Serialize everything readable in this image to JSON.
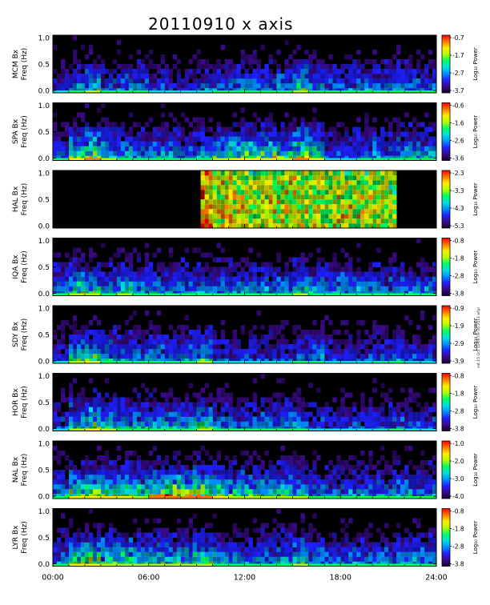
{
  "title": "20110910 x axis",
  "stamp": "sat 15 Oct 11 06:09:26 2011 wfpl",
  "colorbar_label": "Log₁₀ Power",
  "colors": {
    "background": "#000000",
    "frame": "#ffffff",
    "colormap": [
      "#1a0033",
      "#3a0a8a",
      "#2020ff",
      "#0090ff",
      "#00e0e0",
      "#00ff60",
      "#b0ff00",
      "#ffee00",
      "#ff7700",
      "#ff0000"
    ]
  },
  "chart_data": [
    {
      "type": "heatmap",
      "station": "MCM",
      "ylabel": [
        "MCM Bx",
        "Freq (Hz)"
      ],
      "yticks": [
        "1.0",
        "0.5",
        "0.0"
      ],
      "ylim": [
        0,
        1.0
      ],
      "colorbar": {
        "ticks": [
          "-0.7",
          "-1.7",
          "-2.7",
          "-3.7"
        ],
        "range": [
          -3.7,
          -0.7
        ]
      },
      "activity": [
        0.15,
        0.3,
        0.4,
        0.25,
        0.25,
        0.3,
        0.2,
        0.15,
        0.15,
        0.2,
        0.25,
        0.3,
        0.3,
        0.3,
        0.35,
        0.45,
        0.3,
        0.25,
        0.25,
        0.3,
        0.3,
        0.3,
        0.3,
        0.25
      ]
    },
    {
      "type": "heatmap",
      "station": "SPA",
      "ylabel": [
        "SPA Bx",
        "Freq (Hz)"
      ],
      "yticks": [
        "1.0",
        "0.5",
        "0.0"
      ],
      "ylim": [
        0,
        1.0
      ],
      "colorbar": {
        "ticks": [
          "-0.6",
          "-1.6",
          "-2.6",
          "-3.6"
        ],
        "range": [
          -3.6,
          -0.6
        ]
      },
      "activity": [
        0.25,
        0.5,
        0.6,
        0.4,
        0.35,
        0.3,
        0.35,
        0.3,
        0.25,
        0.3,
        0.45,
        0.5,
        0.5,
        0.55,
        0.45,
        0.6,
        0.5,
        0.2,
        0.2,
        0.25,
        0.3,
        0.3,
        0.35,
        0.35
      ]
    },
    {
      "type": "heatmap",
      "station": "HAL",
      "ylabel": [
        "HAL Bx",
        "Freq (Hz)"
      ],
      "yticks": [
        "1.0",
        "0.5",
        "0.0"
      ],
      "ylim": [
        0,
        1.0
      ],
      "colorbar": {
        "ticks": [
          "-2.3",
          "-3.3",
          "-4.3",
          "-5.3"
        ],
        "range": [
          -5.3,
          -2.3
        ]
      },
      "data_window_hours": [
        9.3,
        21.5
      ],
      "activity": [
        0,
        0,
        0,
        0,
        0,
        0,
        0,
        0,
        0,
        0.85,
        0.75,
        0.75,
        0.7,
        0.7,
        0.7,
        0.72,
        0.7,
        0.7,
        0.7,
        0.7,
        0.68,
        0.68,
        0,
        0
      ]
    },
    {
      "type": "heatmap",
      "station": "IQA",
      "ylabel": [
        "IQA Bx",
        "Freq (Hz)"
      ],
      "yticks": [
        "1.0",
        "0.5",
        "0.0"
      ],
      "ylim": [
        0,
        1.0
      ],
      "colorbar": {
        "ticks": [
          "-0.8",
          "-1.8",
          "-2.8",
          "-3.8"
        ],
        "range": [
          -3.8,
          -0.8
        ]
      },
      "activity": [
        0.3,
        0.45,
        0.4,
        0.3,
        0.4,
        0.35,
        0.3,
        0.3,
        0.3,
        0.3,
        0.3,
        0.3,
        0.3,
        0.3,
        0.3,
        0.4,
        0.35,
        0.3,
        0.3,
        0.3,
        0.3,
        0.3,
        0.3,
        0.3
      ]
    },
    {
      "type": "heatmap",
      "station": "SDY",
      "ylabel": [
        "SDY Bx",
        "Freq (Hz)"
      ],
      "yticks": [
        "1.0",
        "0.5",
        "0.0"
      ],
      "ylim": [
        0,
        1.0
      ],
      "colorbar": {
        "ticks": [
          "-0.9",
          "-1.9",
          "-2.9",
          "-3.9"
        ],
        "range": [
          -3.9,
          -0.9
        ]
      },
      "activity": [
        0.2,
        0.45,
        0.5,
        0.35,
        0.3,
        0.3,
        0.3,
        0.25,
        0.3,
        0.4,
        0.2,
        0.2,
        0.2,
        0.2,
        0.2,
        0.25,
        0.3,
        0.2,
        0.2,
        0.2,
        0.25,
        0.25,
        0.2,
        0.2
      ]
    },
    {
      "type": "heatmap",
      "station": "HOR",
      "ylabel": [
        "HOR Bx",
        "Freq (Hz)"
      ],
      "yticks": [
        "1.0",
        "0.5",
        "0.0"
      ],
      "ylim": [
        0,
        1.0
      ],
      "colorbar": {
        "ticks": [
          "-0.8",
          "-1.8",
          "-2.8",
          "-3.8"
        ],
        "range": [
          -3.8,
          -0.8
        ]
      },
      "activity": [
        0.2,
        0.4,
        0.5,
        0.4,
        0.35,
        0.35,
        0.35,
        0.35,
        0.35,
        0.45,
        0.3,
        0.25,
        0.25,
        0.3,
        0.3,
        0.3,
        0.2,
        0.15,
        0.2,
        0.2,
        0.2,
        0.25,
        0.2,
        0.2
      ]
    },
    {
      "type": "heatmap",
      "station": "NAL",
      "ylabel": [
        "NAL Bx",
        "Freq (Hz)"
      ],
      "yticks": [
        "1.0",
        "0.5",
        "0.0"
      ],
      "ylim": [
        0,
        1.0
      ],
      "colorbar": {
        "ticks": [
          "-1.0",
          "-2.0",
          "-3.0",
          "-4.0"
        ],
        "range": [
          -4.0,
          -1.0
        ]
      },
      "activity": [
        0.3,
        0.55,
        0.55,
        0.5,
        0.5,
        0.45,
        0.6,
        0.65,
        0.65,
        0.6,
        0.5,
        0.45,
        0.45,
        0.4,
        0.45,
        0.4,
        0.3,
        0.25,
        0.3,
        0.3,
        0.3,
        0.35,
        0.3,
        0.3
      ]
    },
    {
      "type": "heatmap",
      "station": "LYR",
      "ylabel": [
        "LYR Bx",
        "Freq (Hz)"
      ],
      "yticks": [
        "1.0",
        "0.5",
        "0.0"
      ],
      "ylim": [
        0,
        1.0
      ],
      "colorbar": {
        "ticks": [
          "-0.8",
          "-1.8",
          "-2.8",
          "-3.8"
        ],
        "range": [
          -3.8,
          -0.8
        ]
      },
      "activity": [
        0.3,
        0.5,
        0.55,
        0.45,
        0.45,
        0.45,
        0.45,
        0.4,
        0.45,
        0.45,
        0.35,
        0.3,
        0.3,
        0.3,
        0.35,
        0.4,
        0.3,
        0.25,
        0.3,
        0.3,
        0.3,
        0.3,
        0.3,
        0.3
      ]
    }
  ],
  "xaxis": {
    "ticks": [
      "00:00",
      "06:00",
      "12:00",
      "18:00",
      "24:00"
    ],
    "hours": [
      0,
      6,
      12,
      18,
      24
    ],
    "range": [
      0,
      24
    ]
  }
}
